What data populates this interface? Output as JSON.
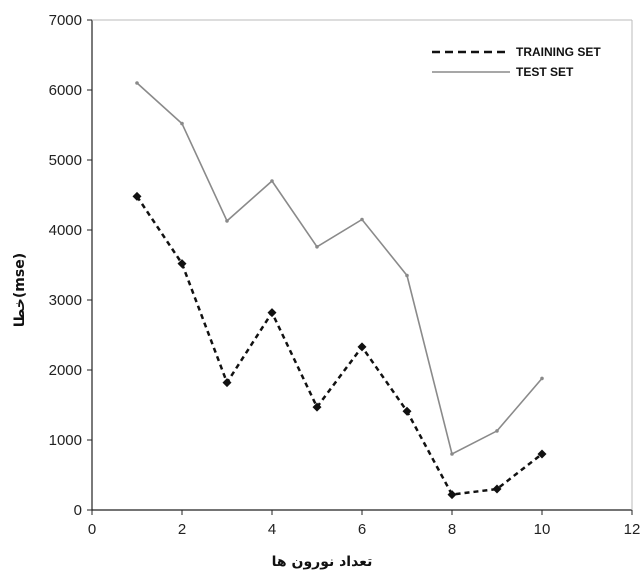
{
  "chart_data": {
    "type": "line",
    "title": "",
    "xlabel": "تعداد نورون ها",
    "ylabel": "(mse)خطا",
    "xlim": [
      0,
      12
    ],
    "ylim": [
      0,
      7000
    ],
    "x_ticks": [
      "0",
      "2",
      "4",
      "6",
      "8",
      "10",
      "12"
    ],
    "y_ticks": [
      "0",
      "1000",
      "2000",
      "3000",
      "4000",
      "5000",
      "6000",
      "7000"
    ],
    "grid": false,
    "legend_position": "top-right",
    "x": [
      1,
      2,
      3,
      4,
      5,
      6,
      7,
      8,
      9,
      10
    ],
    "series": [
      {
        "name": "TRAINING SET",
        "line_style": "dashed",
        "marker": "diamond",
        "color": "#111111",
        "values": [
          4480,
          3520,
          1820,
          2820,
          1470,
          2330,
          1410,
          220,
          300,
          800
        ]
      },
      {
        "name": "TEST SET",
        "line_style": "solid",
        "marker": "none",
        "color": "#8a8a8a",
        "values": [
          6100,
          5520,
          4130,
          4700,
          3760,
          4150,
          3350,
          800,
          1130,
          1880
        ]
      }
    ]
  }
}
